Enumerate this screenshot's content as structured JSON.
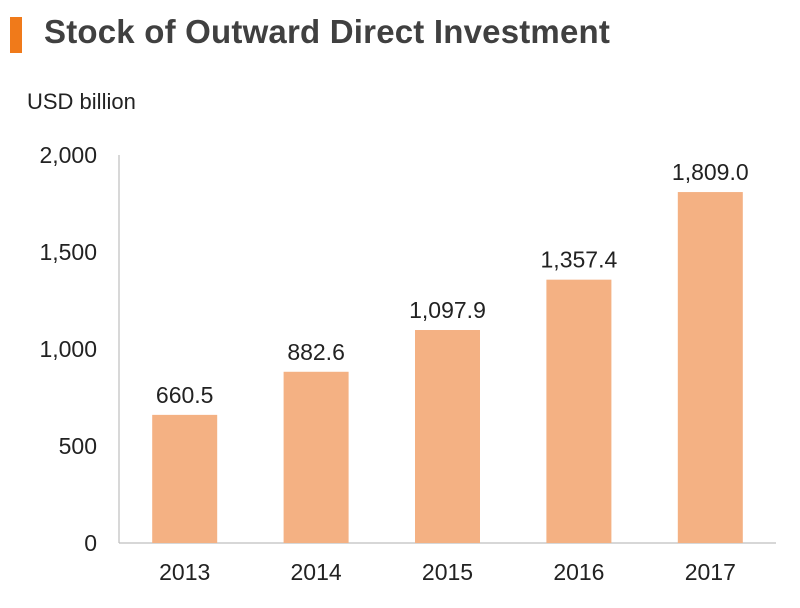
{
  "header": {
    "accent_color": "#f07a1a"
  },
  "chart_data": {
    "type": "bar",
    "title": "Stock of Outward Direct Investment",
    "ylabel": "USD billion",
    "xlabel": "",
    "categories": [
      "2013",
      "2014",
      "2015",
      "2016",
      "2017"
    ],
    "values": [
      660.5,
      882.6,
      1097.9,
      1357.4,
      1809.0
    ],
    "value_labels": [
      "660.5",
      "882.6",
      "1,097.9",
      "1,357.4",
      "1,809.0"
    ],
    "ylim": [
      0,
      2000
    ],
    "yticks": [
      0,
      500,
      1000,
      1500,
      2000
    ],
    "ytick_labels": [
      "0",
      "500",
      "1,000",
      "1,500",
      "2,000"
    ],
    "bar_color": "#f4b183",
    "grid": false,
    "legend": "none"
  }
}
